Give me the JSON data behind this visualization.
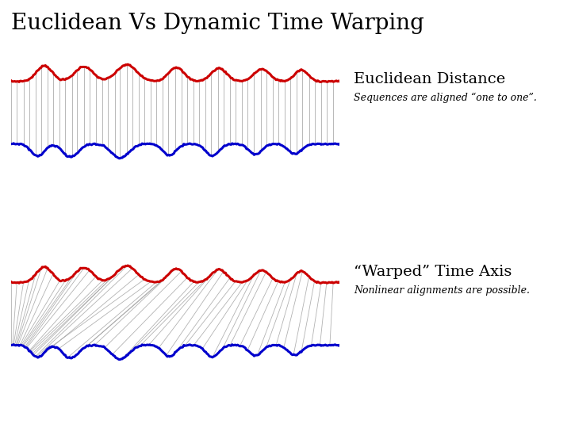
{
  "title": "Euclidean Vs Dynamic Time Warping",
  "title_fontsize": 20,
  "title_font": "serif",
  "panel1_title": "Euclidean Distance",
  "panel1_subtitle": "Sequences are aligned “one to one”.",
  "panel2_title": "“Warped” Time Axis",
  "panel2_subtitle": "Nonlinear alignments are possible.",
  "label_fontsize": 14,
  "sublabel_fontsize": 9,
  "bg_color": "#ffffff",
  "red_color": "#cc0000",
  "blue_color": "#0000cc",
  "line_color": "#999999",
  "n_points": 300,
  "n_lines": 55
}
